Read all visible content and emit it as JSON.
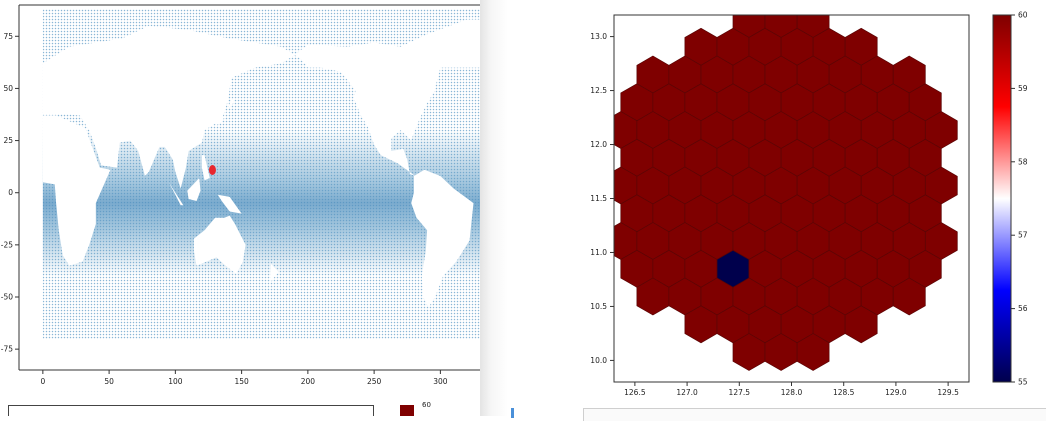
{
  "chart_data": [
    {
      "type": "scatter",
      "xlim": [
        -18,
        345
      ],
      "ylim": [
        -85,
        90
      ],
      "x_ticks": [
        0,
        50,
        100,
        150,
        200,
        250,
        300
      ],
      "y_ticks": [
        75,
        50,
        25,
        0,
        -25,
        -50,
        -75
      ],
      "x_tick_labels": [
        "0",
        "50",
        "100",
        "150",
        "200",
        "250",
        "300"
      ],
      "y_tick_labels": [
        "75",
        "50",
        "25",
        "0",
        "-25",
        "-50",
        "-75"
      ],
      "series": [
        {
          "marker": "dense light-blue grid over ocean",
          "color": "#6fa5cb",
          "x_range": [
            0,
            360
          ],
          "y_range": [
            -70,
            88
          ]
        },
        {
          "marker": "highlight point",
          "color": "#e8262d",
          "points": [
            [
              128,
              10.9
            ]
          ]
        }
      ],
      "grid": false
    },
    {
      "type": "heatmap",
      "xlim": [
        126.3,
        129.7
      ],
      "ylim": [
        9.8,
        13.2
      ],
      "x_ticks": [
        126.5,
        127.0,
        127.5,
        128.0,
        128.5,
        129.0,
        129.5
      ],
      "y_ticks": [
        13.0,
        12.5,
        12.0,
        11.5,
        11.0,
        10.5,
        10.0
      ],
      "x_tick_labels": [
        "126.5",
        "127.0",
        "127.5",
        "128.0",
        "128.5",
        "129.0",
        "129.5"
      ],
      "y_tick_labels": [
        "13.0",
        "12.5",
        "12.0",
        "11.5",
        "11.0",
        "10.5",
        "10.0"
      ],
      "cells": "hexagonal bins covering a roughly circular region centred near (127.9, 11.6)",
      "cell_value_default": 60,
      "low_cells": [
        {
          "x": 127.41,
          "y": 10.87,
          "value": 55
        }
      ],
      "colormap": "seismic",
      "colorbar": {
        "min": 55,
        "max": 60,
        "ticks": [
          60,
          59,
          58,
          57,
          56,
          55
        ],
        "tick_labels": [
          "60",
          "59",
          "58",
          "57",
          "56",
          "55"
        ]
      },
      "colors": {
        "high": "#7f0000",
        "low": "#00004c",
        "edge": "#5a0505"
      },
      "grid": false
    }
  ],
  "partial": {
    "mini_colorbar_label": "60"
  }
}
